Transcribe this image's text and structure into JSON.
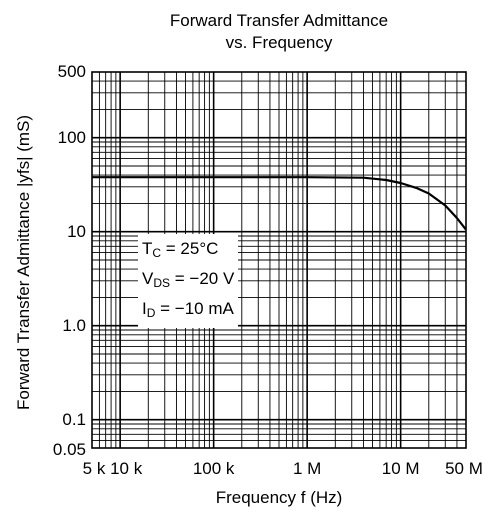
{
  "chart_data": {
    "type": "line",
    "title": [
      "Forward Transfer Admittance",
      "vs. Frequency"
    ],
    "xlabel": "Frequency  f  (Hz)",
    "ylabel": "Forward Transfer Admittance  |yfs|  (mS)",
    "x_scale": "log",
    "y_scale": "log",
    "xlim": [
      5000,
      50000000
    ],
    "ylim": [
      0.05,
      500
    ],
    "x_ticks": [
      {
        "value": 5000,
        "label": "5 k"
      },
      {
        "value": 10000,
        "label": "10 k"
      },
      {
        "value": 100000,
        "label": "100 k"
      },
      {
        "value": 1000000,
        "label": "1 M"
      },
      {
        "value": 10000000,
        "label": "10 M"
      },
      {
        "value": 50000000,
        "label": "50 M"
      }
    ],
    "y_ticks": [
      {
        "value": 500,
        "label": "500"
      },
      {
        "value": 100,
        "label": "100"
      },
      {
        "value": 10,
        "label": "10"
      },
      {
        "value": 1,
        "label": "1.0"
      },
      {
        "value": 0.1,
        "label": "0.1"
      },
      {
        "value": 0.05,
        "label": "0.05"
      }
    ],
    "grid": true,
    "conditions": {
      "tc": {
        "main": "T",
        "sub": "C",
        "rest": " = 25°C"
      },
      "vds": {
        "main": "V",
        "sub": "DS",
        "rest": " = −20 V"
      },
      "id": {
        "main": "I",
        "sub": "D",
        "rest": " = −10 mA"
      }
    },
    "series": [
      {
        "x": [
          5000,
          100000,
          1000000,
          4000000,
          7000000,
          10000000,
          15000000,
          20000000,
          30000000,
          40000000,
          50000000
        ],
        "y": [
          38,
          38,
          38,
          37.5,
          35.5,
          33,
          29,
          25.5,
          19,
          14,
          10.5
        ]
      }
    ]
  }
}
